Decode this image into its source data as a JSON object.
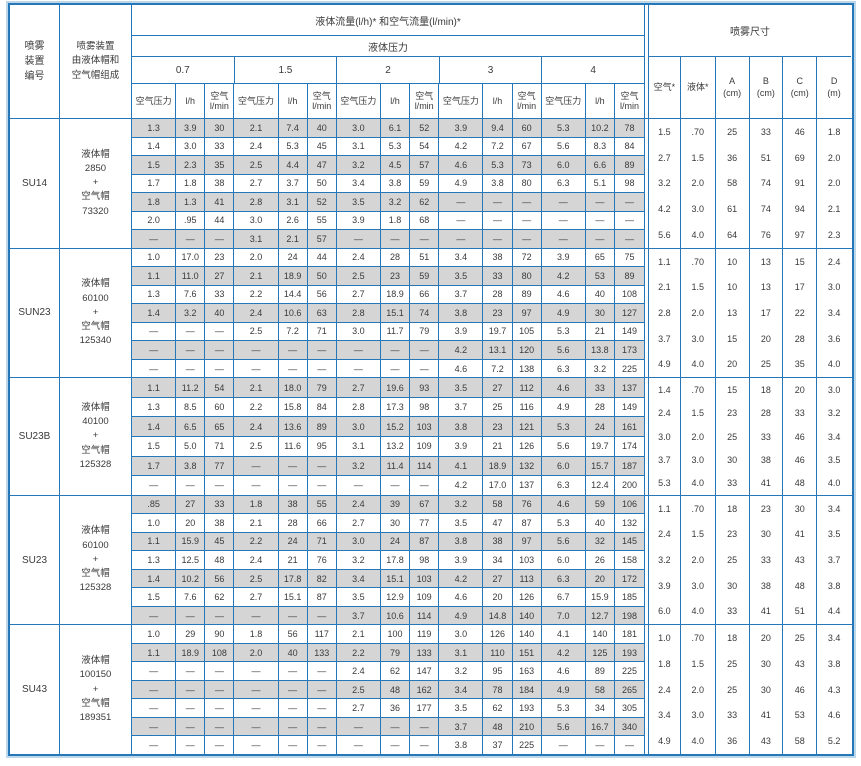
{
  "colors": {
    "border": "#2577b8",
    "shaded_row": "#d5d5d5",
    "text": "#3a3a3a",
    "outer_halo": "#bcd6ea"
  },
  "header": {
    "device_col": "喷雾\n装置\n编号",
    "caps_col": "喷雾装置\n由液体帽和\n空气帽组成",
    "flow_title": "液体流量(l/h)* 和空气流量(l/min)*",
    "pressure_title": "液体压力",
    "pressures": [
      "0.7",
      "1.5",
      "2",
      "3",
      "4"
    ],
    "sub_labels": [
      "空气压力",
      "l/h",
      "空气\nl/min"
    ],
    "dims_title": "喷雾尺寸",
    "dims_labels": [
      "空气*",
      "液体*",
      "A\n(cm)",
      "B\n(cm)",
      "C\n(cm)",
      "D\n(m)"
    ]
  },
  "sections": [
    {
      "id": "SU14",
      "caps": "液体帽\n2850\n+\n空气帽\n73320",
      "rows": [
        [
          "1.3",
          "3.9",
          "30",
          "2.1",
          "7.4",
          "40",
          "3.0",
          "6.1",
          "52",
          "3.9",
          "9.4",
          "60",
          "5.3",
          "10.2",
          "78"
        ],
        [
          "1.4",
          "3.0",
          "33",
          "2.4",
          "5.3",
          "45",
          "3.1",
          "5.3",
          "54",
          "4.2",
          "7.2",
          "67",
          "5.6",
          "8.3",
          "84"
        ],
        [
          "1.5",
          "2.3",
          "35",
          "2.5",
          "4.4",
          "47",
          "3.2",
          "4.5",
          "57",
          "4.6",
          "5.3",
          "73",
          "6.0",
          "6.6",
          "89"
        ],
        [
          "1.7",
          "1.8",
          "38",
          "2.7",
          "3.7",
          "50",
          "3.4",
          "3.8",
          "59",
          "4.9",
          "3.8",
          "80",
          "6.3",
          "5.1",
          "98"
        ],
        [
          "1.8",
          "1.3",
          "41",
          "2.8",
          "3.1",
          "52",
          "3.5",
          "3.2",
          "62",
          "—",
          "—",
          "—",
          "—",
          "—",
          "—"
        ],
        [
          "2.0",
          ".95",
          "44",
          "3.0",
          "2.6",
          "55",
          "3.9",
          "1.8",
          "68",
          "—",
          "—",
          "—",
          "—",
          "—",
          "—"
        ],
        [
          "—",
          "—",
          "—",
          "3.1",
          "2.1",
          "57",
          "—",
          "—",
          "—",
          "—",
          "—",
          "—",
          "—",
          "—",
          "—"
        ]
      ],
      "dims": [
        [
          "1.5",
          ".70",
          "25",
          "33",
          "46",
          "1.8"
        ],
        [
          "2.7",
          "1.5",
          "36",
          "51",
          "69",
          "2.0"
        ],
        [
          "3.2",
          "2.0",
          "58",
          "74",
          "91",
          "2.0"
        ],
        [
          "4.2",
          "3.0",
          "61",
          "74",
          "94",
          "2.1"
        ],
        [
          "5.6",
          "4.0",
          "64",
          "76",
          "97",
          "2.3"
        ]
      ]
    },
    {
      "id": "SUN23",
      "caps": "液体帽\n60100\n+\n空气帽\n125340",
      "rows": [
        [
          "1.0",
          "17.0",
          "23",
          "2.0",
          "24",
          "44",
          "2.4",
          "28",
          "51",
          "3.4",
          "38",
          "72",
          "3.9",
          "65",
          "75"
        ],
        [
          "1.1",
          "11.0",
          "27",
          "2.1",
          "18.9",
          "50",
          "2.5",
          "23",
          "59",
          "3.5",
          "33",
          "80",
          "4.2",
          "53",
          "89"
        ],
        [
          "1.3",
          "7.6",
          "33",
          "2.2",
          "14.4",
          "56",
          "2.7",
          "18.9",
          "66",
          "3.7",
          "28",
          "89",
          "4.6",
          "40",
          "108"
        ],
        [
          "1.4",
          "3.2",
          "40",
          "2.4",
          "10.6",
          "63",
          "2.8",
          "15.1",
          "74",
          "3.8",
          "23",
          "97",
          "4.9",
          "30",
          "127"
        ],
        [
          "—",
          "—",
          "—",
          "2.5",
          "7.2",
          "71",
          "3.0",
          "11.7",
          "79",
          "3.9",
          "19.7",
          "105",
          "5.3",
          "21",
          "149"
        ],
        [
          "—",
          "—",
          "—",
          "—",
          "—",
          "—",
          "—",
          "—",
          "—",
          "4.2",
          "13.1",
          "120",
          "5.6",
          "13.8",
          "173"
        ],
        [
          "—",
          "—",
          "—",
          "—",
          "—",
          "—",
          "—",
          "—",
          "—",
          "4.6",
          "7.2",
          "138",
          "6.3",
          "3.2",
          "225"
        ]
      ],
      "dims": [
        [
          "1.1",
          ".70",
          "10",
          "13",
          "15",
          "2.4"
        ],
        [
          "2.1",
          "1.5",
          "10",
          "13",
          "17",
          "3.0"
        ],
        [
          "2.8",
          "2.0",
          "13",
          "17",
          "22",
          "3.4"
        ],
        [
          "3.7",
          "3.0",
          "15",
          "20",
          "28",
          "3.6"
        ],
        [
          "4.9",
          "4.0",
          "20",
          "25",
          "35",
          "4.0"
        ]
      ]
    },
    {
      "id": "SU23B",
      "caps": "液体帽\n40100\n+\n空气帽\n125328",
      "rows": [
        [
          "1.1",
          "11.2",
          "54",
          "2.1",
          "18.0",
          "79",
          "2.7",
          "19.6",
          "93",
          "3.5",
          "27",
          "112",
          "4.6",
          "33",
          "137"
        ],
        [
          "1.3",
          "8.5",
          "60",
          "2.2",
          "15.8",
          "84",
          "2.8",
          "17.3",
          "98",
          "3.7",
          "25",
          "116",
          "4.9",
          "28",
          "149"
        ],
        [
          "1.4",
          "6.5",
          "65",
          "2.4",
          "13.6",
          "89",
          "3.0",
          "15.2",
          "103",
          "3.8",
          "23",
          "121",
          "5.3",
          "24",
          "161"
        ],
        [
          "1.5",
          "5.0",
          "71",
          "2.5",
          "11.6",
          "95",
          "3.1",
          "13.2",
          "109",
          "3.9",
          "21",
          "126",
          "5.6",
          "19.7",
          "174"
        ],
        [
          "1.7",
          "3.8",
          "77",
          "—",
          "—",
          "—",
          "3.2",
          "11.4",
          "114",
          "4.1",
          "18.9",
          "132",
          "6.0",
          "15.7",
          "187"
        ],
        [
          "—",
          "—",
          "—",
          "—",
          "—",
          "—",
          "—",
          "—",
          "—",
          "4.2",
          "17.0",
          "137",
          "6.3",
          "12.4",
          "200"
        ]
      ],
      "dims": [
        [
          "1.4",
          ".70",
          "15",
          "18",
          "20",
          "3.0"
        ],
        [
          "2.4",
          "1.5",
          "23",
          "28",
          "33",
          "3.2"
        ],
        [
          "3.0",
          "2.0",
          "25",
          "33",
          "46",
          "3.4"
        ],
        [
          "3.7",
          "3.0",
          "30",
          "38",
          "46",
          "3.5"
        ],
        [
          "5.3",
          "4.0",
          "33",
          "41",
          "48",
          "4.0"
        ]
      ]
    },
    {
      "id": "SU23",
      "caps": "液体帽\n60100\n+\n空气帽\n125328",
      "rows": [
        [
          ".85",
          "27",
          "33",
          "1.8",
          "38",
          "55",
          "2.4",
          "39",
          "67",
          "3.2",
          "58",
          "76",
          "4.6",
          "59",
          "106"
        ],
        [
          "1.0",
          "20",
          "38",
          "2.1",
          "28",
          "66",
          "2.7",
          "30",
          "77",
          "3.5",
          "47",
          "87",
          "5.3",
          "40",
          "132"
        ],
        [
          "1.1",
          "15.9",
          "45",
          "2.2",
          "24",
          "71",
          "3.0",
          "24",
          "87",
          "3.8",
          "38",
          "97",
          "5.6",
          "32",
          "145"
        ],
        [
          "1.3",
          "12.5",
          "48",
          "2.4",
          "21",
          "76",
          "3.2",
          "17.8",
          "98",
          "3.9",
          "34",
          "103",
          "6.0",
          "26",
          "158"
        ],
        [
          "1.4",
          "10.2",
          "56",
          "2.5",
          "17.8",
          "82",
          "3.4",
          "15.1",
          "103",
          "4.2",
          "27",
          "113",
          "6.3",
          "20",
          "172"
        ],
        [
          "1.5",
          "7.6",
          "62",
          "2.7",
          "15.1",
          "87",
          "3.5",
          "12.9",
          "109",
          "4.6",
          "20",
          "126",
          "6.7",
          "15.9",
          "185"
        ],
        [
          "—",
          "—",
          "—",
          "—",
          "—",
          "—",
          "3.7",
          "10.6",
          "114",
          "4.9",
          "14.8",
          "140",
          "7.0",
          "12.7",
          "198"
        ]
      ],
      "dims": [
        [
          "1.1",
          ".70",
          "18",
          "23",
          "30",
          "3.4"
        ],
        [
          "2.4",
          "1.5",
          "23",
          "30",
          "41",
          "3.5"
        ],
        [
          "3.2",
          "2.0",
          "25",
          "33",
          "43",
          "3.7"
        ],
        [
          "3.9",
          "3.0",
          "30",
          "38",
          "48",
          "3.8"
        ],
        [
          "6.0",
          "4.0",
          "33",
          "41",
          "51",
          "4.4"
        ]
      ]
    },
    {
      "id": "SU43",
      "caps": "液体帽\n100150\n+\n空气帽\n189351",
      "rows": [
        [
          "1.0",
          "29",
          "90",
          "1.8",
          "56",
          "117",
          "2.1",
          "100",
          "119",
          "3.0",
          "126",
          "140",
          "4.1",
          "140",
          "181"
        ],
        [
          "1.1",
          "18.9",
          "108",
          "2.0",
          "40",
          "133",
          "2.2",
          "79",
          "133",
          "3.1",
          "110",
          "151",
          "4.2",
          "125",
          "193"
        ],
        [
          "—",
          "—",
          "—",
          "—",
          "—",
          "—",
          "2.4",
          "62",
          "147",
          "3.2",
          "95",
          "163",
          "4.6",
          "89",
          "225"
        ],
        [
          "—",
          "—",
          "—",
          "—",
          "—",
          "—",
          "2.5",
          "48",
          "162",
          "3.4",
          "78",
          "184",
          "4.9",
          "58",
          "265"
        ],
        [
          "—",
          "—",
          "—",
          "—",
          "—",
          "—",
          "2.7",
          "36",
          "177",
          "3.5",
          "62",
          "193",
          "5.3",
          "34",
          "305"
        ],
        [
          "—",
          "—",
          "—",
          "—",
          "—",
          "—",
          "—",
          "—",
          "—",
          "3.7",
          "48",
          "210",
          "5.6",
          "16.7",
          "340"
        ],
        [
          "—",
          "—",
          "—",
          "—",
          "—",
          "—",
          "—",
          "—",
          "—",
          "3.8",
          "37",
          "225",
          "—",
          "—",
          "—"
        ]
      ],
      "dims": [
        [
          "1.0",
          ".70",
          "18",
          "20",
          "25",
          "3.4"
        ],
        [
          "1.8",
          "1.5",
          "25",
          "30",
          "43",
          "3.8"
        ],
        [
          "2.4",
          "2.0",
          "25",
          "30",
          "46",
          "4.3"
        ],
        [
          "3.4",
          "3.0",
          "33",
          "41",
          "53",
          "4.6"
        ],
        [
          "4.9",
          "4.0",
          "36",
          "43",
          "58",
          "5.2"
        ]
      ]
    }
  ]
}
